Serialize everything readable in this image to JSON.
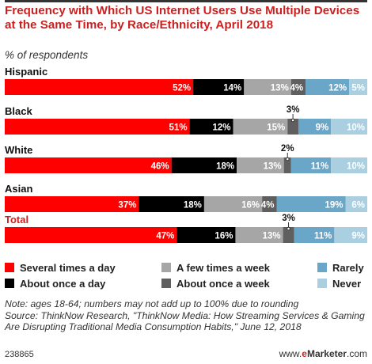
{
  "header": {
    "title": "Frequency with Which US Internet Users Use Multiple Devices at the Same Time, by Race/Ethnicity, April 2018",
    "subtitle": "% of respondents"
  },
  "chart_data": {
    "type": "bar",
    "orientation": "horizontal-stacked",
    "xlim": [
      0,
      100
    ],
    "categories": [
      "Hispanic",
      "Black",
      "White",
      "Asian",
      "Total"
    ],
    "series": [
      {
        "name": "Several times a day",
        "color": "#ff0000",
        "values": [
          52,
          51,
          46,
          37,
          47
        ]
      },
      {
        "name": "About once a day",
        "color": "#000000",
        "values": [
          14,
          12,
          18,
          18,
          16
        ]
      },
      {
        "name": "A few times a week",
        "color": "#a6a6a6",
        "values": [
          13,
          15,
          13,
          16,
          13
        ]
      },
      {
        "name": "About once a week",
        "color": "#5f5f5f",
        "values": [
          4,
          3,
          2,
          4,
          3
        ]
      },
      {
        "name": "Rarely",
        "color": "#6aa6c8",
        "values": [
          12,
          9,
          11,
          19,
          11
        ]
      },
      {
        "name": "Never",
        "color": "#a9cfe0",
        "values": [
          5,
          10,
          10,
          6,
          9
        ]
      }
    ],
    "data_labels": [
      [
        "52%",
        "14%",
        "13%",
        "4%",
        "12%",
        "5%"
      ],
      [
        "51%",
        "12%",
        "15%",
        "3%",
        "9%",
        "10%"
      ],
      [
        "46%",
        "18%",
        "13%",
        "2%",
        "11%",
        "10%"
      ],
      [
        "37%",
        "18%",
        "16%",
        "4%",
        "19%",
        "6%"
      ],
      [
        "47%",
        "16%",
        "13%",
        "3%",
        "11%",
        "9%"
      ]
    ],
    "highlight_category": "Total",
    "highlight_color": "#cc1f1f",
    "legend_position": "bottom"
  },
  "note": "Note: ages 18-64; numbers may not add up to 100% due to rounding",
  "source": "Source: ThinkNow Research, \"ThinkNow Media: How Streaming Services & Gaming Are Disrupting Traditional Media Consumption Habits,\" June 12, 2018",
  "footer": {
    "chart_id": "238865",
    "brand_prefix": "www.",
    "brand_e": "e",
    "brand_main": "Marketer",
    "brand_suffix": ".com"
  }
}
